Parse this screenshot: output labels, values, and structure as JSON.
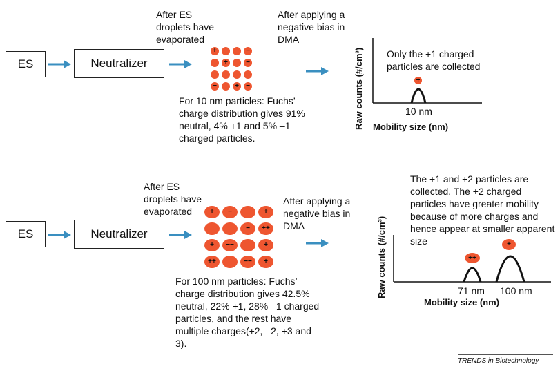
{
  "top": {
    "es_label": "ES",
    "neutralizer_label": "Neutralizer",
    "after_es": "After ES droplets have evaporated",
    "after_bias": "After applying a negative bias in DMA",
    "only_plus1": "Only the +1 charged particles are collected",
    "ylabel": "Raw counts (#/cm³)",
    "xlabel": "Mobility size (nm)",
    "peak_label": "10 nm",
    "peak_particle": "+",
    "fuchs_text": "For 10 nm particles: Fuchs’ charge distribution gives 91% neutral, 4% +1 and 5% –1 charged particles.",
    "particles": [
      [
        "+",
        "",
        "",
        "−"
      ],
      [
        "",
        "+",
        "",
        "−"
      ],
      [
        "",
        "",
        "",
        ""
      ],
      [
        "−",
        "",
        "+",
        "−"
      ]
    ]
  },
  "bottom": {
    "es_label": "ES",
    "neutralizer_label": "Neutralizer",
    "after_es": "After ES droplets have evaporated",
    "after_bias": "After applying a negative bias in DMA",
    "collected_text": "The +1 and +2 particles are collected. The +2 charged particles have greater mobility because of more charges and hence appear at smaller apparent size",
    "ylabel": "Raw counts (#/cm³)",
    "xlabel": "Mobility size (nm)",
    "peak1_label": "71 nm",
    "peak2_label": "100 nm",
    "peak1_particle": "++",
    "peak2_particle": "+",
    "fuchs_text": "For 100 nm particles: Fuchs’ charge distribution gives 42.5% neutral, 22% +1, 28% –1 charged particles, and the rest have multiple charges(+2, –2, +3 and –3).",
    "particles": [
      [
        "+",
        "−",
        "",
        "+"
      ],
      [
        "",
        "",
        "−",
        "++"
      ],
      [
        "+",
        "−−",
        "",
        "+"
      ],
      [
        "++",
        "",
        "−−",
        "+"
      ]
    ]
  },
  "credit": "TRENDS in Biotechnology",
  "colors": {
    "particle": "#ee5630",
    "arrow": "#3a8fc0"
  }
}
